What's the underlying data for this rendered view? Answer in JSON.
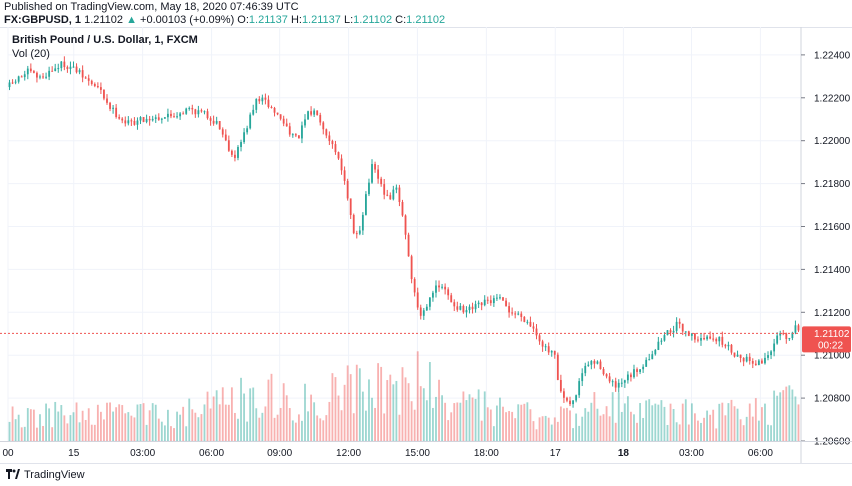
{
  "header": {
    "published": "Published on TradingView.com, May 18, 2020 07:46:39 UTC",
    "symbol": "FX:GBPUSD, 1",
    "last": "1.21102",
    "change_arrow": "▲",
    "change": "+0.00103 (+0.09%)",
    "open_label": "O:",
    "open": "1.21137",
    "high_label": "H:",
    "high": "1.21137",
    "low_label": "L:",
    "low": "1.21102",
    "close_label": "C:",
    "close": "1.21102"
  },
  "legend": {
    "title": "British Pound / U.S. Dollar, 1, FXCM",
    "volume": "Vol (20)"
  },
  "price_badge": {
    "price": "1.21102",
    "countdown": "00:22"
  },
  "footer": {
    "brand": "TradingView"
  },
  "colors": {
    "up": "#26a69a",
    "down": "#ef5350",
    "grid": "#f0f3fa",
    "badge": "#ef5350"
  },
  "chart_data": {
    "type": "candlestick",
    "instrument": "GBPUSD",
    "timeframe": "1 minute",
    "y_ticks": [
      "1.22400",
      "1.22200",
      "1.22000",
      "1.21800",
      "1.21600",
      "1.21400",
      "1.21200",
      "1.21000",
      "1.20800",
      "1.20600"
    ],
    "ylim": [
      1.206,
      1.2253
    ],
    "x_ticks": [
      {
        "label": "00",
        "pos": 0.0
      },
      {
        "label": "15",
        "pos": 0.083
      },
      {
        "label": "03:00",
        "pos": 0.17
      },
      {
        "label": "06:00",
        "pos": 0.257
      },
      {
        "label": "09:00",
        "pos": 0.343
      },
      {
        "label": "12:00",
        "pos": 0.43
      },
      {
        "label": "15:00",
        "pos": 0.517
      },
      {
        "label": "18:00",
        "pos": 0.604
      },
      {
        "label": "17",
        "pos": 0.691
      },
      {
        "label": "18",
        "pos": 0.777,
        "bold": true
      },
      {
        "label": "03:00",
        "pos": 0.863
      },
      {
        "label": "06:00",
        "pos": 0.95
      }
    ],
    "last_price": 1.21102,
    "price_path": [
      [
        0.0,
        1.2225
      ],
      [
        0.01,
        1.2228
      ],
      [
        0.025,
        1.2232
      ],
      [
        0.04,
        1.2229
      ],
      [
        0.055,
        1.2233
      ],
      [
        0.07,
        1.2236
      ],
      [
        0.085,
        1.2233
      ],
      [
        0.1,
        1.2228
      ],
      [
        0.115,
        1.2224
      ],
      [
        0.13,
        1.2215
      ],
      [
        0.15,
        1.2208
      ],
      [
        0.17,
        1.221
      ],
      [
        0.19,
        1.2211
      ],
      [
        0.21,
        1.2212
      ],
      [
        0.23,
        1.2215
      ],
      [
        0.25,
        1.2212
      ],
      [
        0.265,
        1.2208
      ],
      [
        0.275,
        1.22
      ],
      [
        0.285,
        1.2192
      ],
      [
        0.295,
        1.22
      ],
      [
        0.305,
        1.221
      ],
      [
        0.315,
        1.222
      ],
      [
        0.325,
        1.2218
      ],
      [
        0.34,
        1.2212
      ],
      [
        0.355,
        1.2205
      ],
      [
        0.365,
        1.22
      ],
      [
        0.378,
        1.2212
      ],
      [
        0.39,
        1.2214
      ],
      [
        0.4,
        1.2205
      ],
      [
        0.41,
        1.2198
      ],
      [
        0.42,
        1.219
      ],
      [
        0.43,
        1.217
      ],
      [
        0.437,
        1.2155
      ],
      [
        0.445,
        1.216
      ],
      [
        0.452,
        1.2175
      ],
      [
        0.46,
        1.2188
      ],
      [
        0.47,
        1.218
      ],
      [
        0.48,
        1.2172
      ],
      [
        0.49,
        1.2178
      ],
      [
        0.5,
        1.2162
      ],
      [
        0.508,
        1.214
      ],
      [
        0.515,
        1.2125
      ],
      [
        0.522,
        1.2118
      ],
      [
        0.535,
        1.213
      ],
      [
        0.548,
        1.2132
      ],
      [
        0.56,
        1.2125
      ],
      [
        0.575,
        1.212
      ],
      [
        0.59,
        1.2122
      ],
      [
        0.605,
        1.2125
      ],
      [
        0.62,
        1.2126
      ],
      [
        0.635,
        1.212
      ],
      [
        0.65,
        1.2118
      ],
      [
        0.665,
        1.2112
      ],
      [
        0.68,
        1.2102
      ],
      [
        0.69,
        1.21
      ],
      [
        0.695,
        1.2085
      ],
      [
        0.705,
        1.2077
      ],
      [
        0.715,
        1.2078
      ],
      [
        0.722,
        1.209
      ],
      [
        0.735,
        1.2097
      ],
      [
        0.748,
        1.2095
      ],
      [
        0.76,
        1.2087
      ],
      [
        0.77,
        1.2085
      ],
      [
        0.785,
        1.209
      ],
      [
        0.8,
        1.2095
      ],
      [
        0.815,
        1.2102
      ],
      [
        0.83,
        1.211
      ],
      [
        0.845,
        1.2114
      ],
      [
        0.86,
        1.211
      ],
      [
        0.875,
        1.2107
      ],
      [
        0.89,
        1.2109
      ],
      [
        0.905,
        1.2105
      ],
      [
        0.92,
        1.21
      ],
      [
        0.935,
        1.2098
      ],
      [
        0.95,
        1.2096
      ],
      [
        0.962,
        1.2102
      ],
      [
        0.975,
        1.211
      ],
      [
        0.985,
        1.2106
      ],
      [
        0.995,
        1.2114
      ],
      [
        1.0,
        1.21102
      ]
    ],
    "volume_profile": [
      [
        0.0,
        0.25
      ],
      [
        0.06,
        0.3
      ],
      [
        0.12,
        0.28
      ],
      [
        0.18,
        0.3
      ],
      [
        0.24,
        0.35
      ],
      [
        0.28,
        0.45
      ],
      [
        0.33,
        0.5
      ],
      [
        0.38,
        0.45
      ],
      [
        0.42,
        0.55
      ],
      [
        0.44,
        0.75
      ],
      [
        0.47,
        0.65
      ],
      [
        0.5,
        0.55
      ],
      [
        0.52,
        0.7
      ],
      [
        0.54,
        0.55
      ],
      [
        0.58,
        0.4
      ],
      [
        0.64,
        0.3
      ],
      [
        0.69,
        0.25
      ],
      [
        0.72,
        0.35
      ],
      [
        0.76,
        0.4
      ],
      [
        0.8,
        0.35
      ],
      [
        0.86,
        0.3
      ],
      [
        0.92,
        0.32
      ],
      [
        0.96,
        0.35
      ],
      [
        1.0,
        0.45
      ]
    ]
  }
}
